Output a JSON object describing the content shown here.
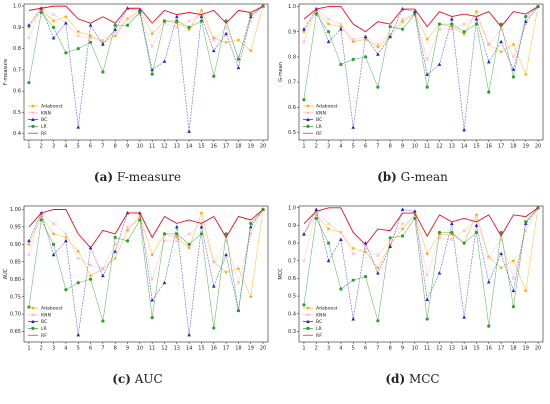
{
  "figure": {
    "captions": [
      {
        "letter": "(a)",
        "text": "F-measure"
      },
      {
        "letter": "(b)",
        "text": "G-mean"
      },
      {
        "letter": "(c)",
        "text": "AUC"
      },
      {
        "letter": "(d)",
        "text": "MCC"
      }
    ]
  },
  "chart_data": [
    {
      "type": "line",
      "ylabel": "F-measure",
      "xlabel": "",
      "x": [
        1,
        2,
        3,
        4,
        5,
        6,
        7,
        8,
        9,
        10,
        11,
        12,
        13,
        14,
        15,
        16,
        17,
        18,
        19,
        20
      ],
      "ylim": [
        0.37,
        1.01
      ],
      "yticks": [
        0.4,
        0.5,
        0.6,
        0.7,
        0.8,
        0.9,
        1.0
      ],
      "legend_position": "lower-left",
      "series": [
        {
          "name": "Adaboost",
          "color": "#ffa500",
          "marker": "star",
          "values": [
            0.9,
            0.98,
            0.93,
            0.95,
            0.88,
            0.86,
            0.83,
            0.86,
            0.94,
            0.98,
            0.87,
            0.93,
            0.92,
            0.89,
            0.98,
            0.85,
            0.83,
            0.84,
            0.79,
            1.0
          ]
        },
        {
          "name": "KNN",
          "color": "#f9b8c2",
          "marker": "x",
          "values": [
            0.85,
            0.99,
            0.96,
            0.92,
            0.86,
            0.85,
            0.84,
            0.88,
            0.94,
            0.96,
            0.81,
            0.92,
            0.9,
            0.93,
            0.96,
            0.84,
            0.9,
            0.76,
            0.93,
            1.0
          ]
        },
        {
          "name": "BC",
          "color": "#1f1fd6",
          "marker": "triangle",
          "values": [
            0.91,
            0.99,
            0.85,
            0.92,
            0.43,
            0.91,
            0.82,
            0.89,
            0.99,
            0.98,
            0.7,
            0.74,
            0.95,
            0.41,
            0.95,
            0.79,
            0.87,
            0.71,
            0.95,
            1.0
          ]
        },
        {
          "name": "LR",
          "color": "#2ca02c",
          "marker": "circle",
          "values": [
            0.64,
            0.97,
            0.9,
            0.78,
            0.8,
            0.83,
            0.69,
            0.91,
            0.91,
            0.97,
            0.68,
            0.93,
            0.93,
            0.9,
            0.93,
            0.67,
            0.93,
            0.75,
            0.96,
            1.0
          ]
        },
        {
          "name": "RF",
          "color": "#e8101e",
          "marker": "none",
          "values": [
            0.98,
            0.99,
            1.0,
            1.0,
            0.94,
            0.92,
            0.95,
            0.92,
            0.99,
            0.99,
            0.92,
            0.98,
            0.96,
            0.97,
            0.96,
            0.98,
            0.92,
            0.98,
            0.97,
            1.0
          ]
        }
      ]
    },
    {
      "type": "line",
      "ylabel": "G-mean",
      "xlabel": "",
      "x": [
        1,
        2,
        3,
        4,
        5,
        6,
        7,
        8,
        9,
        10,
        11,
        12,
        13,
        14,
        15,
        16,
        17,
        18,
        19,
        20
      ],
      "ylim": [
        0.47,
        1.01
      ],
      "yticks": [
        0.5,
        0.6,
        0.7,
        0.8,
        0.9,
        1.0
      ],
      "legend_position": "lower-left",
      "series": [
        {
          "name": "Adaboost",
          "color": "#ffa500",
          "marker": "star",
          "values": [
            0.9,
            0.98,
            0.93,
            0.92,
            0.86,
            0.87,
            0.84,
            0.88,
            0.94,
            0.97,
            0.87,
            0.93,
            0.92,
            0.89,
            0.98,
            0.85,
            0.82,
            0.85,
            0.73,
            1.0
          ]
        },
        {
          "name": "KNN",
          "color": "#f9b8c2",
          "marker": "x",
          "values": [
            0.86,
            0.99,
            0.95,
            0.93,
            0.87,
            0.88,
            0.85,
            0.89,
            0.95,
            0.97,
            0.79,
            0.91,
            0.91,
            0.93,
            0.96,
            0.85,
            0.91,
            0.8,
            0.93,
            1.0
          ]
        },
        {
          "name": "BC",
          "color": "#1f1fd6",
          "marker": "triangle",
          "values": [
            0.91,
            0.99,
            0.86,
            0.91,
            0.52,
            0.88,
            0.81,
            0.88,
            0.99,
            0.98,
            0.73,
            0.77,
            0.95,
            0.51,
            0.95,
            0.78,
            0.86,
            0.75,
            0.94,
            1.0
          ]
        },
        {
          "name": "LR",
          "color": "#2ca02c",
          "marker": "circle",
          "values": [
            0.63,
            0.97,
            0.9,
            0.77,
            0.79,
            0.8,
            0.68,
            0.92,
            0.91,
            0.97,
            0.68,
            0.93,
            0.93,
            0.9,
            0.93,
            0.66,
            0.93,
            0.72,
            0.96,
            1.0
          ]
        },
        {
          "name": "RF",
          "color": "#e8101e",
          "marker": "none",
          "values": [
            0.95,
            0.99,
            1.0,
            1.0,
            0.93,
            0.9,
            0.94,
            0.93,
            0.99,
            0.99,
            0.92,
            0.98,
            0.96,
            0.97,
            0.96,
            0.98,
            0.92,
            0.98,
            0.97,
            1.0
          ]
        }
      ]
    },
    {
      "type": "line",
      "ylabel": "AUC",
      "xlabel": "",
      "x": [
        1,
        2,
        3,
        4,
        5,
        6,
        7,
        8,
        9,
        10,
        11,
        12,
        13,
        14,
        15,
        16,
        17,
        18,
        19,
        20
      ],
      "ylim": [
        0.62,
        1.01
      ],
      "yticks": [
        0.65,
        0.7,
        0.75,
        0.8,
        0.85,
        0.9,
        0.95,
        1.0
      ],
      "legend_position": "lower-left",
      "series": [
        {
          "name": "Adaboost",
          "color": "#ffa500",
          "marker": "star",
          "values": [
            0.9,
            0.98,
            0.93,
            0.92,
            0.88,
            0.81,
            0.83,
            0.86,
            0.94,
            0.98,
            0.87,
            0.93,
            0.92,
            0.89,
            0.99,
            0.85,
            0.82,
            0.83,
            0.75,
            1.0
          ]
        },
        {
          "name": "KNN",
          "color": "#f9b8c2",
          "marker": "x",
          "values": [
            0.87,
            0.99,
            0.96,
            0.93,
            0.86,
            0.84,
            0.83,
            0.9,
            0.95,
            0.97,
            0.8,
            0.91,
            0.91,
            0.93,
            0.96,
            0.85,
            0.91,
            0.79,
            0.93,
            1.0
          ]
        },
        {
          "name": "BC",
          "color": "#1f1fd6",
          "marker": "triangle",
          "values": [
            0.91,
            0.99,
            0.87,
            0.91,
            0.64,
            0.89,
            0.81,
            0.88,
            0.99,
            0.99,
            0.74,
            0.79,
            0.95,
            0.64,
            0.95,
            0.78,
            0.87,
            0.71,
            0.95,
            1.0
          ]
        },
        {
          "name": "LR",
          "color": "#2ca02c",
          "marker": "circle",
          "values": [
            0.72,
            0.97,
            0.9,
            0.77,
            0.79,
            0.8,
            0.68,
            0.92,
            0.91,
            0.97,
            0.69,
            0.93,
            0.93,
            0.9,
            0.93,
            0.66,
            0.93,
            0.71,
            0.96,
            1.0
          ]
        },
        {
          "name": "RF",
          "color": "#e8101e",
          "marker": "none",
          "values": [
            0.95,
            0.99,
            1.0,
            1.0,
            0.93,
            0.89,
            0.94,
            0.93,
            0.99,
            0.99,
            0.92,
            0.98,
            0.96,
            0.97,
            0.96,
            0.98,
            0.92,
            0.98,
            0.97,
            1.0
          ]
        }
      ]
    },
    {
      "type": "line",
      "ylabel": "MCC",
      "xlabel": "",
      "x": [
        1,
        2,
        3,
        4,
        5,
        6,
        7,
        8,
        9,
        10,
        11,
        12,
        13,
        14,
        15,
        16,
        17,
        18,
        19,
        20
      ],
      "ylim": [
        0.24,
        1.01
      ],
      "yticks": [
        0.3,
        0.4,
        0.5,
        0.6,
        0.7,
        0.8,
        0.9,
        1.0
      ],
      "legend_position": "lower-left",
      "series": [
        {
          "name": "Adaboost",
          "color": "#ffa500",
          "marker": "star",
          "values": [
            0.85,
            0.96,
            0.88,
            0.86,
            0.77,
            0.75,
            0.66,
            0.79,
            0.88,
            0.96,
            0.74,
            0.85,
            0.85,
            0.8,
            0.96,
            0.72,
            0.66,
            0.7,
            0.53,
            1.0
          ]
        },
        {
          "name": "KNN",
          "color": "#f9b8c2",
          "marker": "x",
          "values": [
            0.7,
            0.98,
            0.91,
            0.86,
            0.74,
            0.77,
            0.73,
            0.82,
            0.91,
            0.94,
            0.62,
            0.83,
            0.82,
            0.87,
            0.93,
            0.72,
            0.82,
            0.6,
            0.87,
            1.0
          ]
        },
        {
          "name": "BC",
          "color": "#1f1fd6",
          "marker": "triangle",
          "values": [
            0.85,
            0.99,
            0.7,
            0.82,
            0.37,
            0.8,
            0.63,
            0.78,
            0.99,
            0.98,
            0.48,
            0.63,
            0.91,
            0.38,
            0.9,
            0.58,
            0.74,
            0.53,
            0.91,
            1.0
          ]
        },
        {
          "name": "LR",
          "color": "#2ca02c",
          "marker": "circle",
          "values": [
            0.45,
            0.94,
            0.8,
            0.54,
            0.59,
            0.61,
            0.36,
            0.83,
            0.84,
            0.94,
            0.37,
            0.86,
            0.86,
            0.8,
            0.86,
            0.33,
            0.86,
            0.44,
            0.92,
            1.0
          ]
        },
        {
          "name": "RF",
          "color": "#e8101e",
          "marker": "none",
          "values": [
            0.91,
            0.98,
            1.0,
            1.0,
            0.86,
            0.79,
            0.88,
            0.87,
            0.97,
            0.97,
            0.84,
            0.96,
            0.92,
            0.94,
            0.92,
            0.96,
            0.84,
            0.96,
            0.95,
            1.0
          ]
        }
      ]
    }
  ]
}
